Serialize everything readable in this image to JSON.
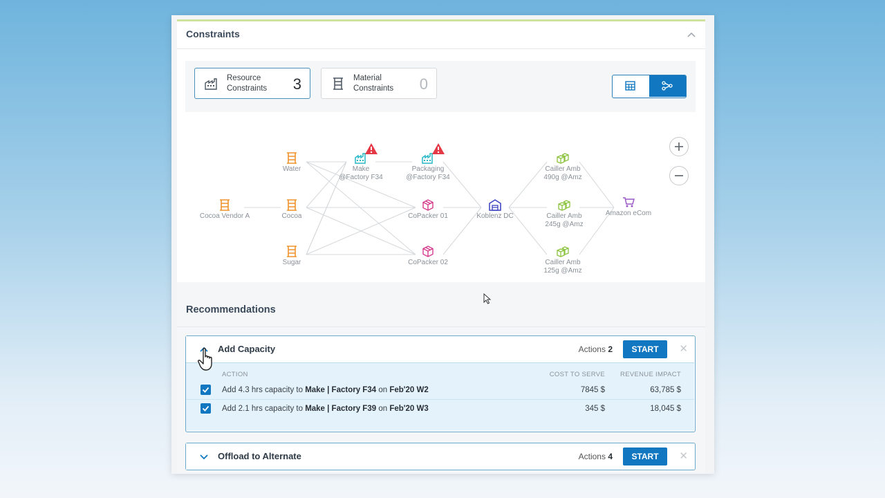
{
  "constraints": {
    "title": "Constraints",
    "resource": {
      "label_line1": "Resource",
      "label_line2": "Constraints",
      "count": "3",
      "icon": "factory-icon"
    },
    "material": {
      "label_line1": "Material",
      "label_line2": "Constraints",
      "count": "0",
      "icon": "material-icon"
    },
    "view_toggle": {
      "options": [
        "table-view-icon",
        "graph-view-icon"
      ],
      "selected": "graph-view-icon"
    }
  },
  "graph": {
    "nodes": {
      "water": {
        "label": "Water",
        "icon": "material-icon"
      },
      "cocoa": {
        "label": "Cocoa",
        "icon": "material-icon"
      },
      "sugar": {
        "label": "Sugar",
        "icon": "material-icon"
      },
      "cocoa_vendor": {
        "label": "Cocoa Vendor A",
        "icon": "material-icon"
      },
      "make": {
        "line1": "Make",
        "line2": "@Factory F34",
        "icon": "factory-icon",
        "warning": true
      },
      "packaging": {
        "line1": "Packaging",
        "line2": "@Factory F34",
        "icon": "factory-icon",
        "warning": true
      },
      "copacker01": {
        "label": "CoPacker 01",
        "icon": "box-icon"
      },
      "copacker02": {
        "label": "CoPacker 02",
        "icon": "box-icon"
      },
      "koblenz": {
        "label": "Koblenz DC",
        "icon": "warehouse-icon"
      },
      "cailler490": {
        "line1": "Cailler Amb",
        "line2": "490g @Amz",
        "icon": "boxes-icon"
      },
      "cailler245": {
        "line1": "Cailler Amb",
        "line2": "245g @Amz",
        "icon": "boxes-icon"
      },
      "cailler125": {
        "line1": "Cailler Amb",
        "line2": "125g @Amz",
        "icon": "boxes-icon"
      },
      "amazon": {
        "label": "Amazon eCom",
        "icon": "cart-icon"
      }
    },
    "colors": {
      "material": "#f0932b",
      "factory": "#27b8c6",
      "box": "#d63a8c",
      "warehouse": "#3a3fbf",
      "boxes": "#8cc43f",
      "cart": "#9b59c7",
      "warning": "#e53945"
    }
  },
  "recommendations": {
    "title": "Recommendations",
    "groups": [
      {
        "name": "Add Capacity",
        "actions_label": "Actions",
        "actions_count": "2",
        "start_label": "START",
        "expanded": true,
        "columns": {
          "action": "ACTION",
          "cost": "COST TO SERVE",
          "revenue": "REVENUE IMPACT"
        },
        "rows": [
          {
            "checked": true,
            "prefix": "Add 4.3 hrs capacity to ",
            "target": "Make | Factory F34",
            "on": " on ",
            "week": "Feb'20 W2",
            "cost": "7845 $",
            "revenue": "63,785 $"
          },
          {
            "checked": true,
            "prefix": "Add 2.1 hrs capacity to ",
            "target": "Make | Factory F39",
            "on": " on ",
            "week": "Feb'20 W3",
            "cost": "345 $",
            "revenue": "18,045 $"
          }
        ]
      },
      {
        "name": "Offload to Alternate",
        "actions_label": "Actions",
        "actions_count": "4",
        "start_label": "START",
        "expanded": false
      }
    ]
  }
}
